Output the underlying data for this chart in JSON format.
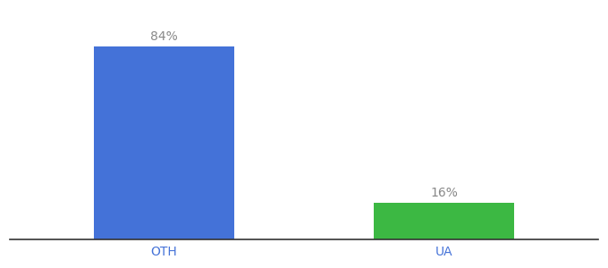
{
  "categories": [
    "OTH",
    "UA"
  ],
  "values": [
    84,
    16
  ],
  "bar_colors": [
    "#4472D8",
    "#3CB843"
  ],
  "label_texts": [
    "84%",
    "16%"
  ],
  "background_color": "#ffffff",
  "bar_width": 0.5,
  "ylim": [
    0,
    100
  ],
  "label_fontsize": 10,
  "tick_fontsize": 10,
  "label_color": "#888888",
  "tick_color": "#4472D8"
}
